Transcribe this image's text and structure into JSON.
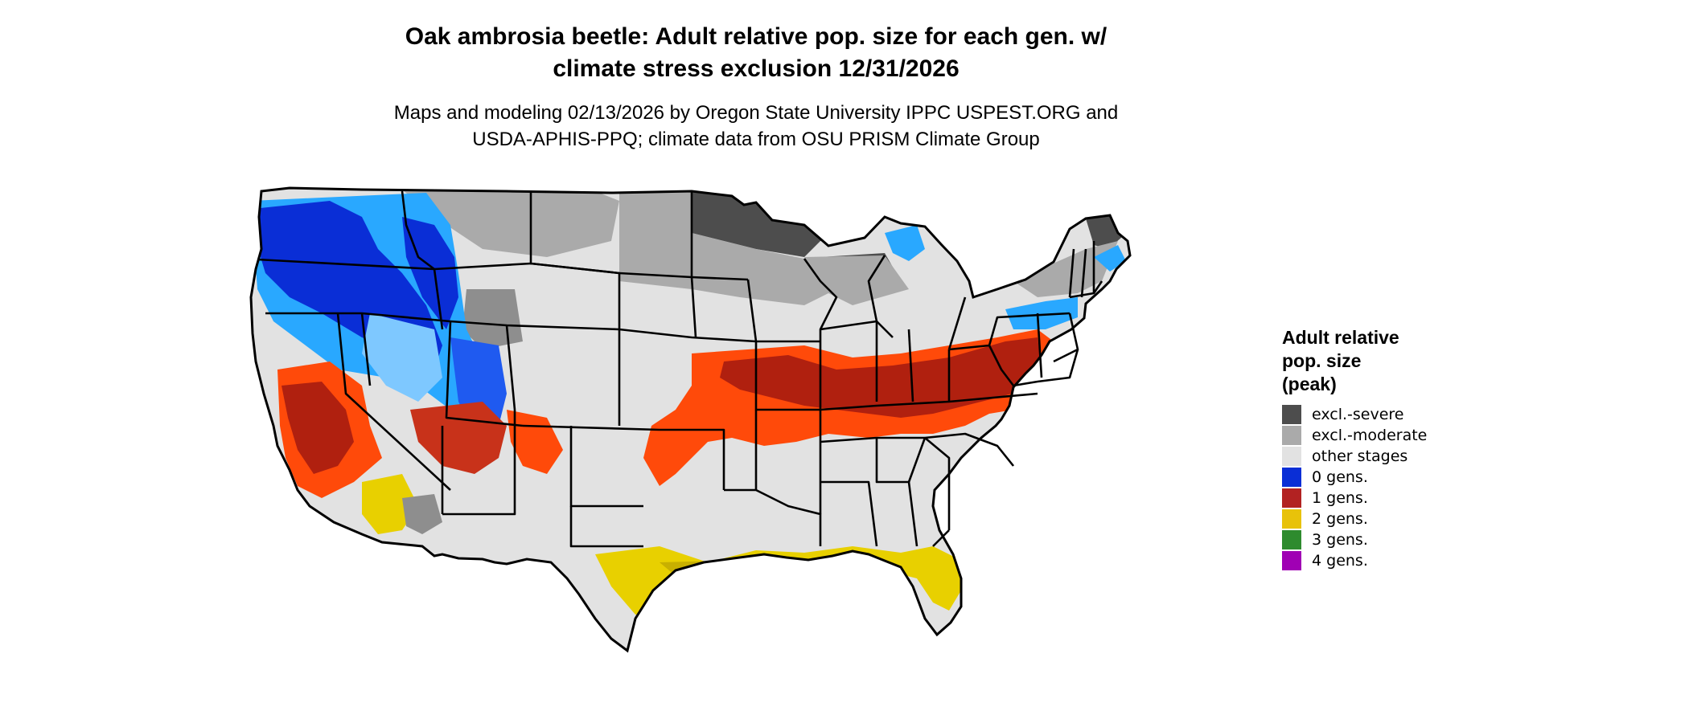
{
  "title": {
    "line1": "Oak ambrosia beetle: Adult relative pop. size for each gen. w/",
    "line2": "climate stress exclusion 12/31/2026"
  },
  "subtitle": {
    "line1": "Maps and modeling 02/13/2026 by Oregon State University IPPC USPEST.ORG and",
    "line2": "USDA-APHIS-PPQ; climate data from OSU PRISM Climate Group"
  },
  "legend": {
    "title_lines": [
      "Adult relative",
      "pop. size",
      "(peak)"
    ],
    "items": [
      {
        "label": "excl.-severe",
        "color": "#4d4d4d"
      },
      {
        "label": "excl.-moderate",
        "color": "#aaaaaa"
      },
      {
        "label": "other stages",
        "color": "#e2e2e2"
      },
      {
        "label": "0 gens.",
        "color": "#0a2ed6"
      },
      {
        "label": "1 gens.",
        "color": "#b22222"
      },
      {
        "label": "2 gens.",
        "color": "#e8c20a"
      },
      {
        "label": "3 gens.",
        "color": "#2e8b2e"
      },
      {
        "label": "4 gens.",
        "color": "#a000b4"
      }
    ]
  },
  "map": {
    "region": "contiguous-united-states",
    "colors": {
      "base": "#e2e2e2",
      "excl_severe": "#4d4d4d",
      "excl_moderate": "#aaaaaa",
      "gen0_dark": "#0a2ed6",
      "gen0_light": "#29a8ff",
      "gen1_red": "#ff4a0a",
      "gen1_dark": "#a01e10",
      "gen2_yellow": "#e8d000",
      "gen3_green": "#33cc33",
      "borders": "#000000"
    }
  }
}
